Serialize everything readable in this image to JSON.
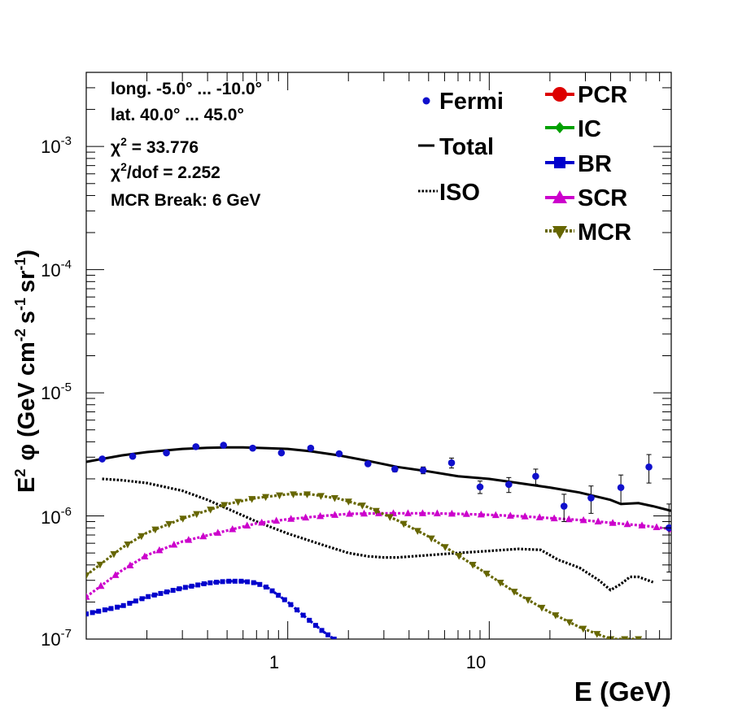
{
  "chart_data": {
    "type": "line",
    "xlabel": "E (GeV)",
    "ylabel": "E² φ (GeV cm⁻² s⁻¹ sr⁻¹)",
    "ylabel_parts": {
      "e": "E",
      "e_sup": "2",
      "phi": "φ",
      "units_open": "(GeV cm",
      "exp1": "-2",
      "s": "s",
      "exp2": "-1",
      "sr": "sr",
      "exp3": "-1",
      "units_close": ")"
    },
    "x_scale": "log",
    "y_scale": "log",
    "xlim": [
      0.1,
      80
    ],
    "ylim": [
      1e-07,
      0.004
    ],
    "x_ticks": [
      {
        "value": 1,
        "label": "1"
      },
      {
        "value": 10,
        "label": "10"
      }
    ],
    "y_ticks": [
      {
        "value": 1e-07,
        "mant": "10",
        "exp": "-7"
      },
      {
        "value": 1e-06,
        "mant": "10",
        "exp": "-6"
      },
      {
        "value": 1e-05,
        "mant": "10",
        "exp": "-5"
      },
      {
        "value": 0.0001,
        "mant": "10",
        "exp": "-4"
      },
      {
        "value": 0.001,
        "mant": "10",
        "exp": "-3"
      }
    ],
    "annotations": {
      "line1": "long. -5.0° ... -10.0°",
      "line2": "lat. 40.0° ... 45.0°",
      "chi_sym": "χ",
      "chi_sup": "2",
      "chi_rest": " = 33.776",
      "chidof_sup": "2",
      "chidof_rest": "/dof = 2.252",
      "line5": "MCR Break:  6 GeV"
    },
    "legend_left": [
      {
        "name": "Fermi",
        "style": "marker"
      },
      {
        "name": "Total",
        "style": "solid"
      },
      {
        "name": "ISO",
        "style": "dotted"
      }
    ],
    "legend_right": [
      {
        "name": "PCR",
        "color": "#dd0000",
        "marker": "circle"
      },
      {
        "name": "IC",
        "color": "#00a000",
        "marker": "diamond"
      },
      {
        "name": "BR",
        "color": "#0000cc",
        "marker": "square"
      },
      {
        "name": "SCR",
        "color": "#cc00cc",
        "marker": "triangle-up"
      },
      {
        "name": "MCR",
        "color": "#666600",
        "marker": "triangle-down"
      }
    ],
    "colors": {
      "fermi": "#1010cc",
      "total": "#000000",
      "iso": "#000000",
      "BR": "#0000cc",
      "SCR": "#cc00cc",
      "MCR": "#666600"
    },
    "fermi": [
      {
        "x": 0.12,
        "y": 2.9e-06,
        "err": 8e-08
      },
      {
        "x": 0.17,
        "y": 3.05e-06,
        "err": 8e-08
      },
      {
        "x": 0.25,
        "y": 3.25e-06,
        "err": 8e-08
      },
      {
        "x": 0.35,
        "y": 3.65e-06,
        "err": 1e-07
      },
      {
        "x": 0.48,
        "y": 3.75e-06,
        "err": 1e-07
      },
      {
        "x": 0.67,
        "y": 3.55e-06,
        "err": 1e-07
      },
      {
        "x": 0.93,
        "y": 3.25e-06,
        "err": 1e-07
      },
      {
        "x": 1.3,
        "y": 3.55e-06,
        "err": 1e-07
      },
      {
        "x": 1.8,
        "y": 3.2e-06,
        "err": 1e-07
      },
      {
        "x": 2.5,
        "y": 2.65e-06,
        "err": 1e-07
      },
      {
        "x": 3.4,
        "y": 2.4e-06,
        "err": 1.2e-07
      },
      {
        "x": 4.7,
        "y": 2.35e-06,
        "err": 1.5e-07
      },
      {
        "x": 6.5,
        "y": 2.7e-06,
        "err": 2.5e-07
      },
      {
        "x": 9.0,
        "y": 1.72e-06,
        "err": 2e-07
      },
      {
        "x": 12.5,
        "y": 1.8e-06,
        "err": 2.5e-07
      },
      {
        "x": 17.0,
        "y": 2.1e-06,
        "err": 3e-07
      },
      {
        "x": 23.5,
        "y": 1.2e-06,
        "err": 3e-07
      },
      {
        "x": 32.0,
        "y": 1.4e-06,
        "err": 3.5e-07
      },
      {
        "x": 45.0,
        "y": 1.7e-06,
        "err": 4.5e-07
      },
      {
        "x": 62.0,
        "y": 2.5e-06,
        "err": 6.5e-07
      },
      {
        "x": 78.0,
        "y": 8e-07,
        "err": 4.5e-07
      }
    ],
    "series": [
      {
        "name": "Total",
        "style": "solid",
        "x": [
          0.1,
          0.15,
          0.2,
          0.3,
          0.4,
          0.5,
          0.6,
          0.8,
          1.0,
          1.3,
          1.8,
          2.5,
          3.5,
          5,
          7,
          10,
          14,
          20,
          28,
          40,
          45,
          55,
          65,
          80
        ],
        "y": [
          2.75e-06,
          3.1e-06,
          3.3e-06,
          3.5e-06,
          3.58e-06,
          3.6e-06,
          3.6e-06,
          3.55e-06,
          3.5e-06,
          3.35e-06,
          3.1e-06,
          2.8e-06,
          2.5e-06,
          2.3e-06,
          2.1e-06,
          2e-06,
          1.85e-06,
          1.7e-06,
          1.55e-06,
          1.35e-06,
          1.25e-06,
          1.27e-06,
          1.2e-06,
          1.1e-06
        ]
      },
      {
        "name": "ISO",
        "style": "dotted",
        "x": [
          0.12,
          0.15,
          0.2,
          0.3,
          0.4,
          0.5,
          0.7,
          1.0,
          1.5,
          2.0,
          2.5,
          3.0,
          3.5,
          5,
          7,
          10,
          14,
          18,
          22,
          28,
          35,
          40,
          45,
          50,
          55,
          65
        ],
        "y": [
          2e-06,
          1.95e-06,
          1.85e-06,
          1.6e-06,
          1.35e-06,
          1.15e-06,
          9e-07,
          7.2e-07,
          5.8e-07,
          5e-07,
          4.7e-07,
          4.6e-07,
          4.6e-07,
          4.8e-07,
          5e-07,
          5.2e-07,
          5.4e-07,
          5.3e-07,
          4.4e-07,
          3.8e-07,
          3e-07,
          2.5e-07,
          2.8e-07,
          3.2e-07,
          3.2e-07,
          2.9e-07
        ]
      },
      {
        "name": "BR",
        "style": "dotted-markers",
        "marker": "square",
        "x": [
          0.1,
          0.15,
          0.2,
          0.3,
          0.4,
          0.5,
          0.6,
          0.7,
          0.8,
          1.0,
          1.2,
          1.5,
          1.7
        ],
        "y": [
          1.6e-07,
          1.85e-07,
          2.2e-07,
          2.6e-07,
          2.85e-07,
          2.95e-07,
          2.95e-07,
          2.85e-07,
          2.6e-07,
          2e-07,
          1.55e-07,
          1.15e-07,
          1e-07
        ]
      },
      {
        "name": "SCR",
        "style": "dotted-markers",
        "marker": "triangle-up",
        "x": [
          0.1,
          0.15,
          0.2,
          0.3,
          0.5,
          0.7,
          1.0,
          1.5,
          2.0,
          3.0,
          5,
          7,
          10,
          15,
          20,
          30,
          40,
          60,
          80
        ],
        "y": [
          2.2e-07,
          3.6e-07,
          4.8e-07,
          6.2e-07,
          7.6e-07,
          8.7e-07,
          9.4e-07,
          1e-06,
          1.04e-06,
          1.05e-06,
          1.05e-06,
          1.04e-06,
          1.02e-06,
          9.9e-07,
          9.6e-07,
          9.2e-07,
          8.8e-07,
          8.3e-07,
          7.8e-07
        ]
      },
      {
        "name": "MCR",
        "style": "dotted-markers",
        "marker": "triangle-down",
        "x": [
          0.1,
          0.15,
          0.2,
          0.3,
          0.5,
          0.7,
          1.0,
          1.3,
          1.8,
          2.5,
          3.5,
          5,
          7,
          10,
          14,
          20,
          28,
          40,
          55
        ],
        "y": [
          3.3e-07,
          5.5e-07,
          7.3e-07,
          9.5e-07,
          1.25e-06,
          1.4e-06,
          1.5e-06,
          1.5e-06,
          1.38e-06,
          1.18e-06,
          9.2e-07,
          6.8e-07,
          4.8e-07,
          3.3e-07,
          2.3e-07,
          1.65e-07,
          1.25e-07,
          1e-07,
          1e-07
        ]
      }
    ]
  }
}
